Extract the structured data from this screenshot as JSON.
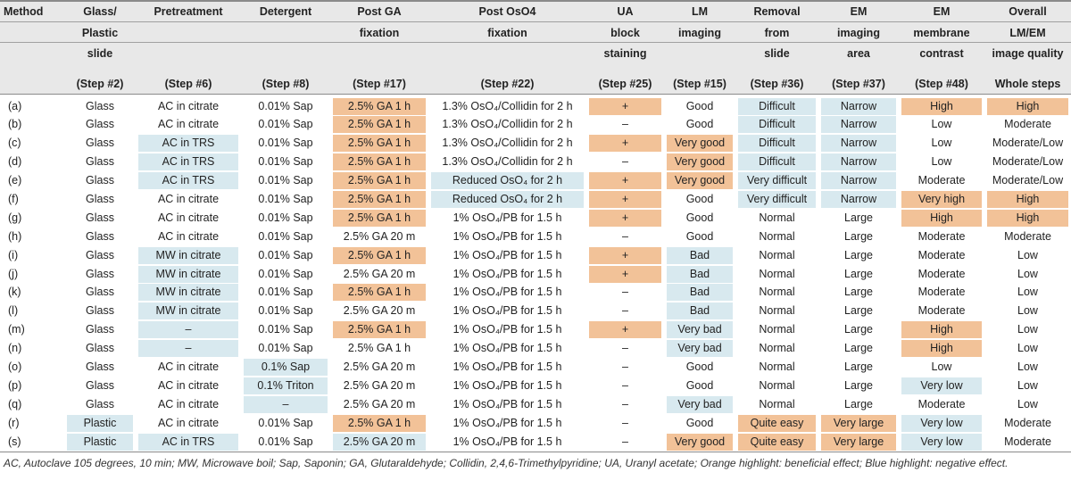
{
  "table": {
    "header_lines": [
      [
        "Method",
        "Glass/",
        "Pretreatment",
        "Detergent",
        "Post GA",
        "Post OsO4",
        "UA",
        "LM",
        "Removal",
        "EM",
        "EM",
        "Overall"
      ],
      [
        "",
        "Plastic",
        "",
        "",
        "fixation",
        "fixation",
        "block",
        "imaging",
        "from",
        "imaging",
        "membrane",
        "LM/EM"
      ],
      [
        "",
        "slide",
        "",
        "",
        "",
        "",
        "staining",
        "",
        "slide",
        "area",
        "contrast",
        "image quality"
      ]
    ],
    "steps": [
      "",
      "(Step #2)",
      "(Step #6)",
      "(Step #8)",
      "(Step #17)",
      "(Step #22)",
      "(Step #25)",
      "(Step #15)",
      "(Step #36)",
      "(Step #37)",
      "(Step #48)",
      "Whole steps"
    ],
    "rows": [
      {
        "cells": [
          "(a)",
          "Glass",
          "AC in citrate",
          "0.01% Sap",
          "2.5% GA 1 h",
          "1.3% OsO₄/Collidin for 2 h",
          "+",
          "Good",
          "Difficult",
          "Narrow",
          "High",
          "High"
        ],
        "hl": [
          "",
          "",
          "",
          "",
          "o",
          "",
          "o",
          "",
          "b",
          "b",
          "o",
          "o"
        ]
      },
      {
        "cells": [
          "(b)",
          "Glass",
          "AC in citrate",
          "0.01% Sap",
          "2.5% GA 1 h",
          "1.3% OsO₄/Collidin for 2 h",
          "–",
          "Good",
          "Difficult",
          "Narrow",
          "Low",
          "Moderate"
        ],
        "hl": [
          "",
          "",
          "",
          "",
          "o",
          "",
          "",
          "",
          "b",
          "b",
          "",
          ""
        ]
      },
      {
        "cells": [
          "(c)",
          "Glass",
          "AC in TRS",
          "0.01% Sap",
          "2.5% GA 1 h",
          "1.3% OsO₄/Collidin for 2 h",
          "+",
          "Very good",
          "Difficult",
          "Narrow",
          "Low",
          "Moderate/Low"
        ],
        "hl": [
          "",
          "",
          "b",
          "",
          "o",
          "",
          "o",
          "o",
          "b",
          "b",
          "",
          ""
        ]
      },
      {
        "cells": [
          "(d)",
          "Glass",
          "AC in TRS",
          "0.01% Sap",
          "2.5% GA 1 h",
          "1.3% OsO₄/Collidin for 2 h",
          "–",
          "Very good",
          "Difficult",
          "Narrow",
          "Low",
          "Moderate/Low"
        ],
        "hl": [
          "",
          "",
          "b",
          "",
          "o",
          "",
          "",
          "o",
          "b",
          "b",
          "",
          ""
        ]
      },
      {
        "cells": [
          "(e)",
          "Glass",
          "AC in TRS",
          "0.01% Sap",
          "2.5% GA 1 h",
          "Reduced OsO₄ for 2 h",
          "+",
          "Very good",
          "Very difficult",
          "Narrow",
          "Moderate",
          "Moderate/Low"
        ],
        "hl": [
          "",
          "",
          "b",
          "",
          "o",
          "b",
          "o",
          "o",
          "b",
          "b",
          "",
          ""
        ]
      },
      {
        "cells": [
          "(f)",
          "Glass",
          "AC in citrate",
          "0.01% Sap",
          "2.5% GA 1 h",
          "Reduced OsO₄ for 2 h",
          "+",
          "Good",
          "Very difficult",
          "Narrow",
          "Very high",
          "High"
        ],
        "hl": [
          "",
          "",
          "",
          "",
          "o",
          "b",
          "o",
          "",
          "b",
          "b",
          "o",
          "o"
        ]
      },
      {
        "cells": [
          "(g)",
          "Glass",
          "AC in citrate",
          "0.01% Sap",
          "2.5% GA 1 h",
          "1% OsO₄/PB for 1.5 h",
          "+",
          "Good",
          "Normal",
          "Large",
          "High",
          "High"
        ],
        "hl": [
          "",
          "",
          "",
          "",
          "o",
          "",
          "o",
          "",
          "",
          "",
          "o",
          "o"
        ]
      },
      {
        "cells": [
          "(h)",
          "Glass",
          "AC in citrate",
          "0.01% Sap",
          "2.5% GA 20 m",
          "1% OsO₄/PB for 1.5 h",
          "–",
          "Good",
          "Normal",
          "Large",
          "Moderate",
          "Moderate"
        ],
        "hl": [
          "",
          "",
          "",
          "",
          "",
          "",
          "",
          "",
          "",
          "",
          "",
          ""
        ]
      },
      {
        "cells": [
          "(i)",
          "Glass",
          "MW in citrate",
          "0.01% Sap",
          "2.5% GA 1 h",
          "1% OsO₄/PB for 1.5 h",
          "+",
          "Bad",
          "Normal",
          "Large",
          "Moderate",
          "Low"
        ],
        "hl": [
          "",
          "",
          "b",
          "",
          "o",
          "",
          "o",
          "b",
          "",
          "",
          "",
          ""
        ]
      },
      {
        "cells": [
          "(j)",
          "Glass",
          "MW in citrate",
          "0.01% Sap",
          "2.5% GA 20 m",
          "1% OsO₄/PB for 1.5 h",
          "+",
          "Bad",
          "Normal",
          "Large",
          "Moderate",
          "Low"
        ],
        "hl": [
          "",
          "",
          "b",
          "",
          "",
          "",
          "o",
          "b",
          "",
          "",
          "",
          ""
        ]
      },
      {
        "cells": [
          "(k)",
          "Glass",
          "MW in citrate",
          "0.01% Sap",
          "2.5% GA 1 h",
          "1% OsO₄/PB for 1.5 h",
          "–",
          "Bad",
          "Normal",
          "Large",
          "Moderate",
          "Low"
        ],
        "hl": [
          "",
          "",
          "b",
          "",
          "o",
          "",
          "",
          "b",
          "",
          "",
          "",
          ""
        ]
      },
      {
        "cells": [
          "(l)",
          "Glass",
          "MW in citrate",
          "0.01% Sap",
          "2.5% GA 20 m",
          "1% OsO₄/PB for 1.5 h",
          "–",
          "Bad",
          "Normal",
          "Large",
          "Moderate",
          "Low"
        ],
        "hl": [
          "",
          "",
          "b",
          "",
          "",
          "",
          "",
          "b",
          "",
          "",
          "",
          ""
        ]
      },
      {
        "cells": [
          "(m)",
          "Glass",
          "–",
          "0.01% Sap",
          "2.5% GA 1 h",
          "1% OsO₄/PB for 1.5 h",
          "+",
          "Very bad",
          "Normal",
          "Large",
          "High",
          "Low"
        ],
        "hl": [
          "",
          "",
          "b",
          "",
          "o",
          "",
          "o",
          "b",
          "",
          "",
          "o",
          ""
        ]
      },
      {
        "cells": [
          "(n)",
          "Glass",
          "–",
          "0.01% Sap",
          "2.5% GA 1 h",
          "1% OsO₄/PB for 1.5 h",
          "–",
          "Very bad",
          "Normal",
          "Large",
          "High",
          "Low"
        ],
        "hl": [
          "",
          "",
          "b",
          "",
          "",
          "",
          "",
          "b",
          "",
          "",
          "o",
          ""
        ]
      },
      {
        "cells": [
          "(o)",
          "Glass",
          "AC in citrate",
          "0.1% Sap",
          "2.5% GA 20 m",
          "1% OsO₄/PB for 1.5 h",
          "–",
          "Good",
          "Normal",
          "Large",
          "Low",
          "Low"
        ],
        "hl": [
          "",
          "",
          "",
          "b",
          "",
          "",
          "",
          "",
          "",
          "",
          "",
          ""
        ]
      },
      {
        "cells": [
          "(p)",
          "Glass",
          "AC in citrate",
          "0.1% Triton",
          "2.5% GA 20 m",
          "1% OsO₄/PB for 1.5 h",
          "–",
          "Good",
          "Normal",
          "Large",
          "Very low",
          "Low"
        ],
        "hl": [
          "",
          "",
          "",
          "b",
          "",
          "",
          "",
          "",
          "",
          "",
          "b",
          ""
        ]
      },
      {
        "cells": [
          "(q)",
          "Glass",
          "AC in citrate",
          "–",
          "2.5% GA 20 m",
          "1% OsO₄/PB for 1.5 h",
          "–",
          "Very bad",
          "Normal",
          "Large",
          "Moderate",
          "Low"
        ],
        "hl": [
          "",
          "",
          "",
          "b",
          "",
          "",
          "",
          "b",
          "",
          "",
          "",
          ""
        ]
      },
      {
        "cells": [
          "(r)",
          "Plastic",
          "AC in citrate",
          "0.01% Sap",
          "2.5% GA 1 h",
          "1% OsO₄/PB for 1.5 h",
          "–",
          "Good",
          "Quite easy",
          "Very large",
          "Very low",
          "Moderate"
        ],
        "hl": [
          "",
          "b",
          "",
          "",
          "o",
          "",
          "",
          "",
          "o",
          "o",
          "b",
          ""
        ]
      },
      {
        "cells": [
          "(s)",
          "Plastic",
          "AC in TRS",
          "0.01% Sap",
          "2.5% GA 20 m",
          "1% OsO₄/PB for 1.5 h",
          "–",
          "Very good",
          "Quite easy",
          "Very large",
          "Very low",
          "Moderate"
        ],
        "hl": [
          "",
          "b",
          "b",
          "",
          "b",
          "",
          "",
          "o",
          "o",
          "o",
          "b",
          ""
        ]
      }
    ]
  },
  "footnote": "AC, Autoclave 105 degrees, 10 min; MW, Microwave boil; Sap, Saponin; GA, Glutaraldehyde; Collidin, 2,4,6-Trimethylpyridine; UA, Uranyl acetate; Orange highlight: beneficial effect; Blue highlight: negative effect.",
  "colors": {
    "orange": "#f2c298",
    "blue": "#d8e9ef",
    "header_bg": "#e8e8e8"
  }
}
